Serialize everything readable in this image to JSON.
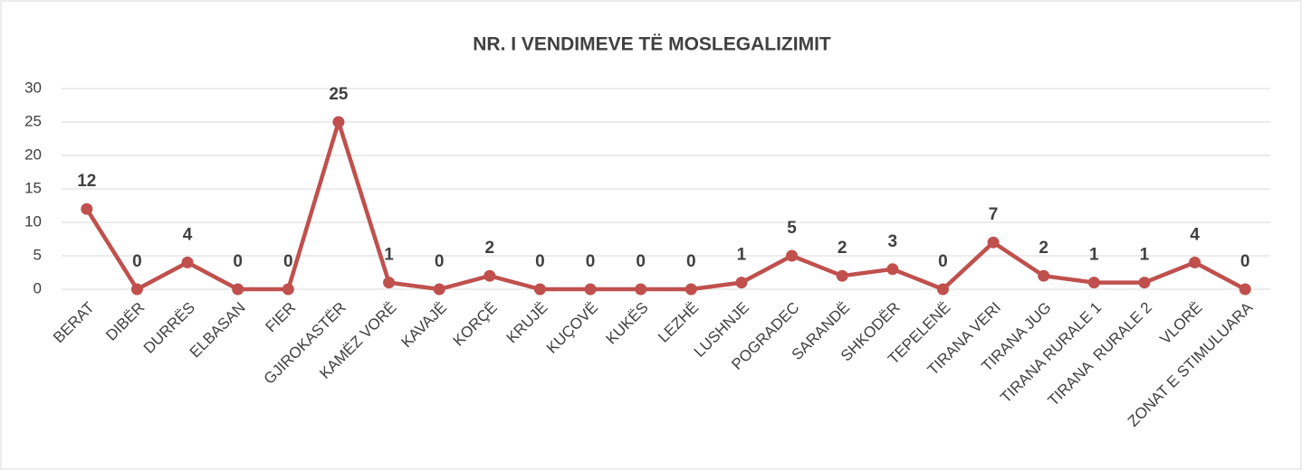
{
  "chart_data": {
    "type": "line",
    "title": "NR. I VENDIMEVE TË MOSLEGALIZIMIT",
    "categories": [
      "BERAT",
      "DIBËR",
      "DURRËS",
      "ELBASAN",
      "FIER",
      "GJIROKASTËR",
      "KAMËZ VORË",
      "KAVAJË",
      "KORÇË",
      "KRUJË",
      "KUÇOVË",
      "KUKËS",
      "LEZHË",
      "LUSHNJE",
      "POGRADEC",
      "SARANDË",
      "SHKODËR",
      "TEPELENË",
      "TIRANA VERI",
      "TIRANA JUG",
      "TIRANA RURALE 1",
      "TIRANA  RURALE 2",
      "VLORË",
      "ZONAT E STIMULUARA"
    ],
    "values": [
      12,
      0,
      4,
      0,
      0,
      25,
      1,
      0,
      2,
      0,
      0,
      0,
      0,
      1,
      5,
      2,
      3,
      0,
      7,
      2,
      1,
      1,
      4,
      0
    ],
    "color": "#c0504d",
    "ylim": [
      0,
      30
    ],
    "yticks": [
      0,
      5,
      10,
      15,
      20,
      25,
      30
    ],
    "grid": true
  }
}
